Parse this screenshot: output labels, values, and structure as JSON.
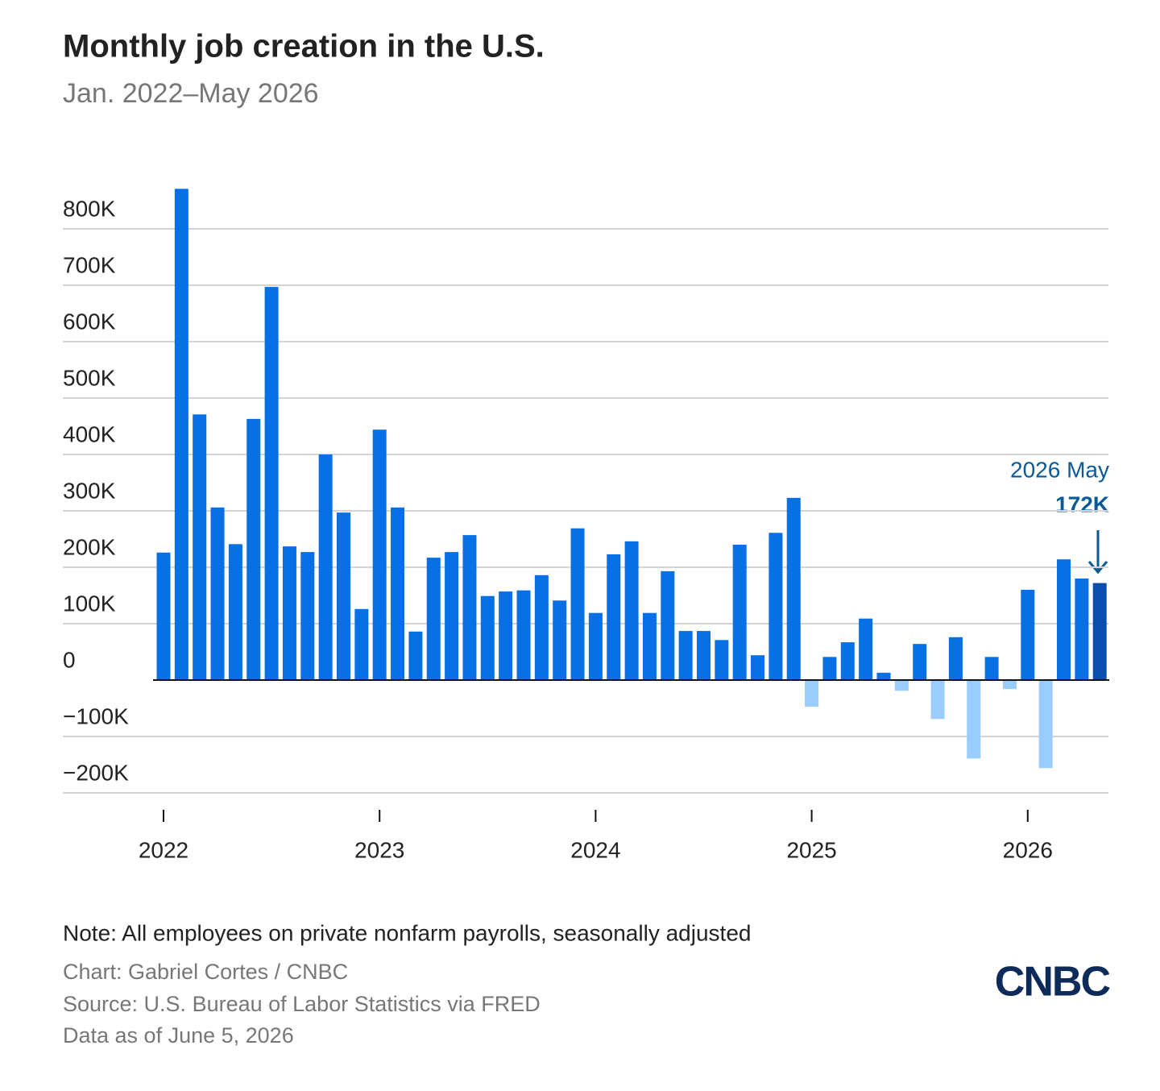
{
  "chart_data": {
    "type": "bar",
    "title": "Monthly job creation in the U.S.",
    "subtitle": "Jan. 2022–May 2026",
    "categories": [
      "2022",
      null,
      null,
      null,
      null,
      null,
      null,
      null,
      null,
      null,
      null,
      null,
      "2023",
      null,
      null,
      null,
      null,
      null,
      null,
      null,
      null,
      null,
      null,
      null,
      "2024",
      null,
      null,
      null,
      null,
      null,
      null,
      null,
      null,
      null,
      null,
      null,
      "2025",
      null,
      null,
      null,
      null,
      null,
      null,
      null,
      null,
      null,
      null,
      null,
      "2026",
      null,
      null,
      null,
      null
    ],
    "values": [
      226,
      871,
      471,
      306,
      241,
      463,
      697,
      237,
      227,
      400,
      297,
      126,
      444,
      306,
      86,
      217,
      227,
      257,
      149,
      157,
      159,
      186,
      141,
      269,
      119,
      223,
      246,
      119,
      193,
      87,
      87,
      71,
      240,
      44,
      261,
      323,
      -47,
      41,
      67,
      109,
      13,
      -19,
      64,
      -69,
      76,
      -139,
      41,
      -16,
      160,
      -156,
      214,
      180,
      172
    ],
    "colors": [
      "#0670e4",
      "#0670e4",
      "#0670e4",
      "#0670e4",
      "#0670e4",
      "#0670e4",
      "#0670e4",
      "#0670e4",
      "#0670e4",
      "#0670e4",
      "#0670e4",
      "#0670e4",
      "#0670e4",
      "#0670e4",
      "#0670e4",
      "#0670e4",
      "#0670e4",
      "#0670e4",
      "#0670e4",
      "#0670e4",
      "#0670e4",
      "#0670e4",
      "#0670e4",
      "#0670e4",
      "#0670e4",
      "#0670e4",
      "#0670e4",
      "#0670e4",
      "#0670e4",
      "#0670e4",
      "#0670e4",
      "#0670e4",
      "#0670e4",
      "#0670e4",
      "#0670e4",
      "#0670e4",
      "#99ccff",
      "#0670e4",
      "#0670e4",
      "#0670e4",
      "#0670e4",
      "#99ccff",
      "#0670e4",
      "#99ccff",
      "#0670e4",
      "#99ccff",
      "#0670e4",
      "#99ccff",
      "#0670e4",
      "#99ccff",
      "#0670e4",
      "#0670e4",
      "#0a4fb0"
    ],
    "ylim": [
      -200,
      900
    ],
    "yticks": [
      {
        "value": -200,
        "label": "−200K"
      },
      {
        "value": -100,
        "label": "−100K"
      },
      0,
      {
        "value": 100,
        "label": "100K"
      },
      {
        "value": 200,
        "label": "200K"
      },
      {
        "value": 300,
        "label": "300K"
      },
      {
        "value": 400,
        "label": "400K"
      },
      {
        "value": 500,
        "label": "500K"
      },
      {
        "value": 600,
        "label": "600K"
      },
      {
        "value": 700,
        "label": "700K"
      },
      {
        "value": 800,
        "label": "800K"
      }
    ],
    "grid": true,
    "annotation": {
      "label": "2026 May",
      "value_label": "172K"
    },
    "note": "Note: All employees on private nonfarm payrolls, seasonally adjusted",
    "credit": "Chart: Gabriel Cortes / CNBC",
    "source": "Source: U.S. Bureau of Labor Statistics via FRED",
    "date": "Data as of June 5, 2026",
    "logo": "CNBC"
  }
}
